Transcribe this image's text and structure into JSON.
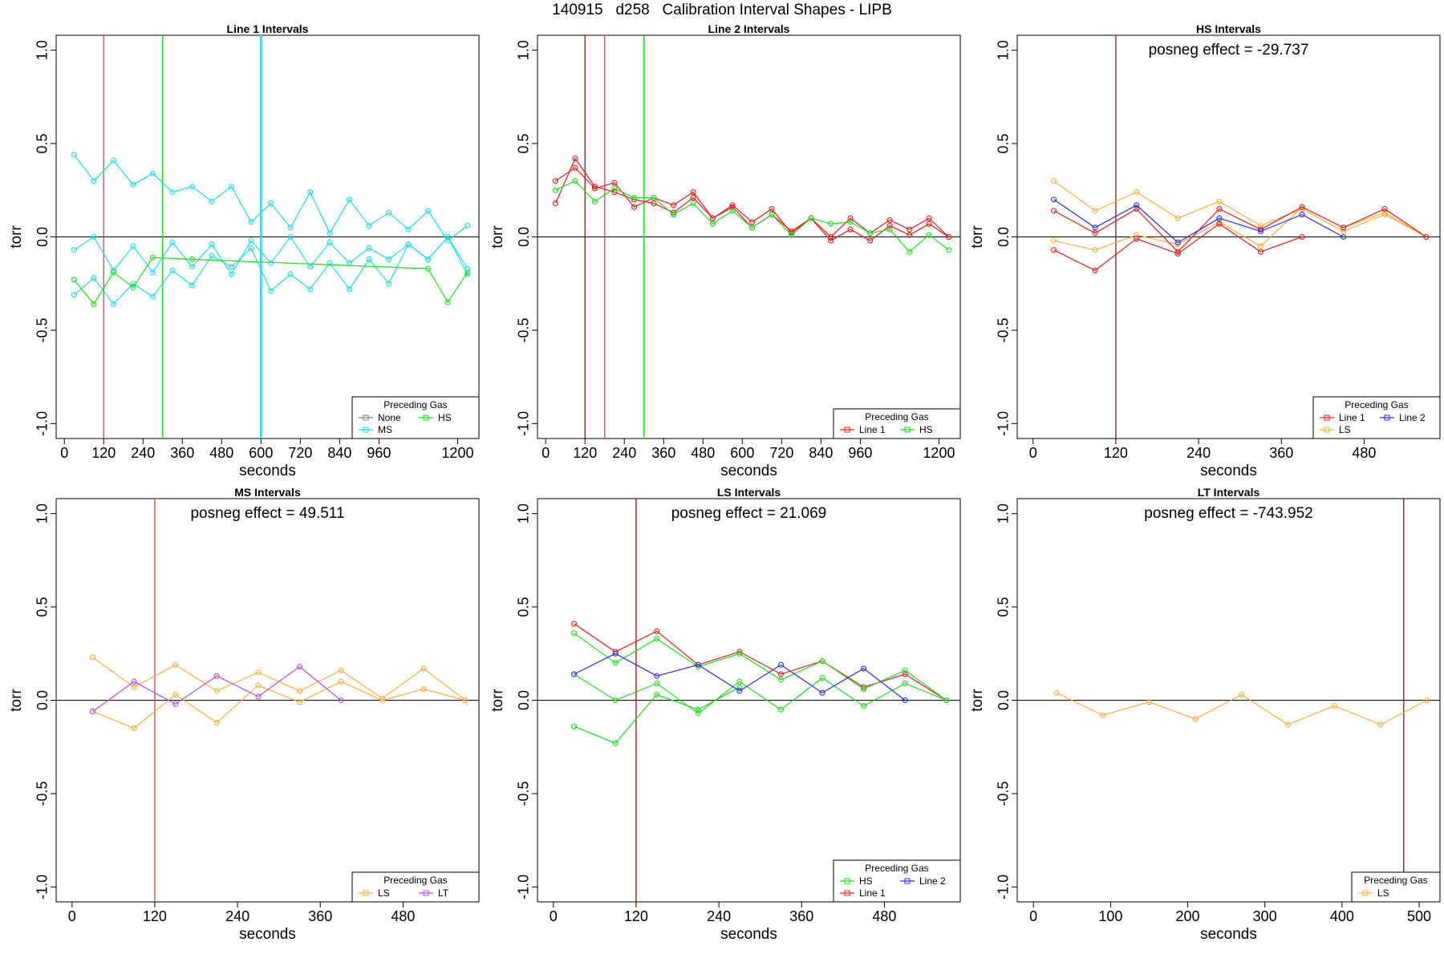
{
  "figure": {
    "title": "140915   d258   Calibration Interval Shapes - LIPB"
  },
  "colors": {
    "None": "#808080",
    "HS": "#22dd22",
    "MS": "#22dde0",
    "LS": "#f5b041",
    "LT": "#b24fe0",
    "Line 1": "#e61e1e",
    "Line 2": "#2e2ee6",
    "vline_dark": "#8b0000",
    "vline_red": "#d04040"
  },
  "chart_data": [
    {
      "type": "line",
      "title": "Line 1 Intervals",
      "xlabel": "seconds",
      "ylabel": "torr",
      "xlim": [
        -25,
        1265
      ],
      "ylim": [
        -1.08,
        1.08
      ],
      "xticks": [
        0,
        120,
        240,
        360,
        480,
        600,
        720,
        840,
        960,
        1200
      ],
      "yticks": [
        1.0,
        0.5,
        0.0,
        -0.5,
        -1.0
      ],
      "ytick_labels": [
        "1.0",
        "0.5",
        "0.0",
        "-0.5",
        "-1.0"
      ],
      "hline": 0,
      "vlines": [
        {
          "x": 120,
          "color": "#c04040",
          "width": 1.2
        },
        {
          "x": 300,
          "color": "#22dd22",
          "width": 1.5
        },
        {
          "x": 600,
          "color": "#22dde0",
          "width": 2.5
        }
      ],
      "series": [
        {
          "name": "MS",
          "color": "#22dde0",
          "x": [
            30,
            90,
            150,
            210,
            270,
            330,
            390,
            450,
            510,
            570,
            630,
            690,
            750,
            810,
            870,
            930,
            990,
            1050,
            1110,
            1170,
            1230
          ],
          "y": [
            0.44,
            0.3,
            0.41,
            0.28,
            0.34,
            0.24,
            0.27,
            0.19,
            0.27,
            0.08,
            0.18,
            0.05,
            0.24,
            0.02,
            0.2,
            0.06,
            0.13,
            0.04,
            0.14,
            -0.02,
            0.06
          ]
        },
        {
          "name": "MS",
          "color": "#22dde0",
          "x": [
            30,
            90,
            150,
            210,
            270,
            330,
            390,
            450,
            510,
            570,
            630,
            690,
            750,
            810,
            870,
            930,
            990,
            1050,
            1110,
            1170,
            1230
          ],
          "y": [
            -0.07,
            0.0,
            -0.18,
            -0.05,
            -0.19,
            -0.03,
            -0.16,
            -0.04,
            -0.2,
            -0.02,
            -0.14,
            0.0,
            -0.16,
            -0.03,
            -0.14,
            -0.06,
            -0.12,
            -0.04,
            -0.12,
            0.0,
            -0.2
          ]
        },
        {
          "name": "MS",
          "color": "#22dde0",
          "x": [
            30,
            90,
            150,
            210,
            270,
            330,
            390,
            450,
            510,
            570,
            630,
            690,
            750,
            810,
            870,
            930,
            990,
            1050,
            1110,
            1170,
            1230
          ],
          "y": [
            -0.31,
            -0.22,
            -0.36,
            -0.25,
            -0.32,
            -0.18,
            -0.26,
            -0.1,
            -0.16,
            -0.06,
            -0.29,
            -0.2,
            -0.28,
            -0.14,
            -0.28,
            -0.12,
            -0.25,
            -0.04,
            -0.12,
            0.0,
            -0.17
          ]
        },
        {
          "name": "HS",
          "color": "#22dd22",
          "x": [
            30,
            90,
            150,
            210,
            270,
            390,
            1110,
            1170,
            1230
          ],
          "y": [
            -0.23,
            -0.36,
            -0.19,
            -0.27,
            -0.11,
            -0.12,
            -0.17,
            -0.35,
            -0.19
          ]
        }
      ],
      "legend": {
        "title": "Preceding Gas",
        "position": "bottom-right",
        "rows": [
          [
            {
              "label": "None",
              "color": "#808080"
            },
            {
              "label": "HS",
              "color": "#22dd22"
            }
          ],
          [
            {
              "label": "MS",
              "color": "#22dde0"
            }
          ]
        ]
      }
    },
    {
      "type": "line",
      "title": "Line 2 Intervals",
      "xlabel": "seconds",
      "ylabel": "torr",
      "xlim": [
        -25,
        1265
      ],
      "ylim": [
        -1.08,
        1.08
      ],
      "xticks": [
        0,
        120,
        240,
        360,
        480,
        600,
        720,
        840,
        960,
        1200
      ],
      "yticks": [
        1.0,
        0.5,
        0.0,
        -0.5,
        -1.0
      ],
      "ytick_labels": [
        "1.0",
        "0.5",
        "0.0",
        "-0.5",
        "-1.0"
      ],
      "hline": 0,
      "vlines": [
        {
          "x": 120,
          "color": "#8b0000",
          "width": 1.2
        },
        {
          "x": 180,
          "color": "#d04040",
          "width": 1.2
        },
        {
          "x": 300,
          "color": "#22dd22",
          "width": 1.5
        }
      ],
      "series": [
        {
          "name": "Line 1",
          "color": "#e61e1e",
          "x": [
            30,
            90,
            150,
            210,
            270,
            330,
            390,
            450,
            510,
            570,
            630,
            690,
            750,
            810,
            870,
            930,
            990,
            1050,
            1110,
            1170,
            1230
          ],
          "y": [
            0.3,
            0.37,
            0.26,
            0.29,
            0.16,
            0.21,
            0.17,
            0.24,
            0.1,
            0.17,
            0.08,
            0.15,
            0.02,
            0.1,
            0.0,
            0.1,
            0.02,
            0.09,
            0.04,
            0.1,
            0.0
          ]
        },
        {
          "name": "Line 1",
          "color": "#e61e1e",
          "x": [
            30,
            90,
            150,
            210,
            270,
            330,
            390,
            450,
            510,
            570,
            630,
            690,
            750,
            810,
            870,
            930,
            990,
            1050,
            1110,
            1170,
            1230
          ],
          "y": [
            0.18,
            0.42,
            0.27,
            0.24,
            0.2,
            0.18,
            0.13,
            0.21,
            0.1,
            0.16,
            0.05,
            0.12,
            0.03,
            0.1,
            -0.02,
            0.04,
            -0.02,
            0.06,
            0.01,
            0.07,
            0.0
          ]
        },
        {
          "name": "HS",
          "color": "#22dd22",
          "x": [
            30,
            90,
            150,
            210,
            270,
            330,
            390,
            450,
            510,
            570,
            630,
            690,
            750,
            810,
            870,
            930,
            990,
            1050,
            1110,
            1170,
            1230
          ],
          "y": [
            0.25,
            0.3,
            0.19,
            0.26,
            0.21,
            0.21,
            0.12,
            0.18,
            0.07,
            0.14,
            0.05,
            0.12,
            0.01,
            0.1,
            0.07,
            0.08,
            0.02,
            0.04,
            -0.08,
            0.01,
            -0.07
          ]
        }
      ],
      "legend": {
        "title": "Preceding Gas",
        "position": "bottom-right",
        "rows": [
          [
            {
              "label": "Line 1",
              "color": "#e61e1e"
            },
            {
              "label": "HS",
              "color": "#22dd22"
            }
          ]
        ]
      }
    },
    {
      "type": "line",
      "title": "HS Intervals",
      "xlabel": "seconds",
      "ylabel": "torr",
      "xlim": [
        -23,
        590
      ],
      "ylim": [
        -1.08,
        1.08
      ],
      "xticks": [
        0,
        120,
        240,
        360,
        480
      ],
      "yticks": [
        1.0,
        0.5,
        0.0,
        -0.5,
        -1.0
      ],
      "ytick_labels": [
        "1.0",
        "0.5",
        "0.0",
        "-0.5",
        "-1.0"
      ],
      "hline": 0,
      "vlines": [
        {
          "x": 120,
          "color": "#8b0000",
          "width": 1.2
        }
      ],
      "annotation": "posneg effect = -29.737",
      "series": [
        {
          "name": "LS",
          "color": "#f5b041",
          "x": [
            30,
            90,
            150,
            210,
            270,
            330,
            390,
            450,
            510,
            570
          ],
          "y": [
            0.3,
            0.14,
            0.24,
            0.1,
            0.19,
            0.06,
            0.15,
            0.03,
            0.12,
            0.0
          ]
        },
        {
          "name": "LS",
          "color": "#f5b041",
          "x": [
            30,
            90,
            150,
            210,
            270,
            330,
            390,
            450,
            510,
            570
          ],
          "y": [
            -0.02,
            -0.07,
            0.01,
            -0.04,
            0.08,
            -0.05,
            0.16,
            0.05,
            0.13,
            0.0
          ]
        },
        {
          "name": "Line 1",
          "color": "#e61e1e",
          "x": [
            30,
            90,
            150,
            210,
            270,
            330,
            390,
            450,
            510,
            570
          ],
          "y": [
            0.14,
            0.02,
            0.15,
            -0.08,
            0.15,
            0.04,
            0.16,
            0.05,
            0.15,
            0.0
          ]
        },
        {
          "name": "Line 1",
          "color": "#e61e1e",
          "x": [
            30,
            90,
            150,
            210,
            270,
            330,
            390
          ],
          "y": [
            -0.07,
            -0.18,
            -0.01,
            -0.09,
            0.07,
            -0.08,
            0.0
          ]
        },
        {
          "name": "Line 2",
          "color": "#2e2ee6",
          "x": [
            30,
            90,
            150,
            210,
            270,
            330,
            390,
            450
          ],
          "y": [
            0.2,
            0.05,
            0.17,
            -0.03,
            0.1,
            0.03,
            0.12,
            0.0
          ]
        }
      ],
      "legend": {
        "title": "Preceding Gas",
        "position": "bottom-right",
        "rows": [
          [
            {
              "label": "Line 1",
              "color": "#e61e1e"
            },
            {
              "label": "Line 2",
              "color": "#2e2ee6"
            }
          ],
          [
            {
              "label": "LS",
              "color": "#f5b041"
            }
          ]
        ]
      }
    },
    {
      "type": "line",
      "title": "MS Intervals",
      "xlabel": "seconds",
      "ylabel": "torr",
      "xlim": [
        -23,
        590
      ],
      "ylim": [
        -1.08,
        1.08
      ],
      "xticks": [
        0,
        120,
        240,
        360,
        480
      ],
      "yticks": [
        1.0,
        0.5,
        0.0,
        -0.5,
        -1.0
      ],
      "ytick_labels": [
        "1.0",
        "0.5",
        "0.0",
        "-0.5",
        "-1.0"
      ],
      "hline": 0,
      "vlines": [
        {
          "x": 120,
          "color": "#c04040",
          "width": 1.2
        }
      ],
      "annotation": "posneg effect = 49.511",
      "series": [
        {
          "name": "LS",
          "color": "#f5b041",
          "x": [
            30,
            90,
            150,
            210,
            270,
            330,
            390,
            450,
            510,
            570
          ],
          "y": [
            0.23,
            0.07,
            0.19,
            0.05,
            0.15,
            0.05,
            0.16,
            0.01,
            0.17,
            0.0
          ]
        },
        {
          "name": "LS",
          "color": "#f5b041",
          "x": [
            30,
            90,
            150,
            210,
            270,
            330,
            390,
            450,
            510,
            570
          ],
          "y": [
            -0.06,
            -0.15,
            0.03,
            -0.12,
            0.08,
            -0.01,
            0.1,
            0.0,
            0.06,
            0.0
          ]
        },
        {
          "name": "LT",
          "color": "#b24fe0",
          "x": [
            30,
            90,
            150,
            210,
            270,
            330,
            390
          ],
          "y": [
            -0.06,
            0.1,
            -0.02,
            0.13,
            0.02,
            0.18,
            0.0
          ]
        }
      ],
      "legend": {
        "title": "Preceding Gas",
        "position": "bottom-right",
        "rows": [
          [
            {
              "label": "LS",
              "color": "#f5b041"
            },
            {
              "label": "LT",
              "color": "#b24fe0"
            }
          ]
        ]
      }
    },
    {
      "type": "line",
      "title": "LS Intervals",
      "xlabel": "seconds",
      "ylabel": "torr",
      "xlim": [
        -23,
        590
      ],
      "ylim": [
        -1.08,
        1.08
      ],
      "xticks": [
        0,
        120,
        240,
        360,
        480
      ],
      "yticks": [
        1.0,
        0.5,
        0.0,
        -0.5,
        -1.0
      ],
      "ytick_labels": [
        "1.0",
        "0.5",
        "0.0",
        "-0.5",
        "-1.0"
      ],
      "hline": 0,
      "vlines": [
        {
          "x": 120,
          "color": "#8b0000",
          "width": 1.2
        }
      ],
      "annotation": "posneg effect = 21.069",
      "series": [
        {
          "name": "Line 1",
          "color": "#e61e1e",
          "x": [
            30,
            90,
            150,
            210,
            270,
            330,
            390,
            450,
            510,
            570
          ],
          "y": [
            0.41,
            0.26,
            0.37,
            0.19,
            0.26,
            0.14,
            0.21,
            0.07,
            0.14,
            0.0
          ]
        },
        {
          "name": "HS",
          "color": "#22dd22",
          "x": [
            30,
            90,
            150,
            210,
            270,
            330,
            390,
            450,
            510,
            570
          ],
          "y": [
            0.36,
            0.2,
            0.33,
            0.18,
            0.25,
            0.11,
            0.21,
            0.06,
            0.16,
            0.0
          ]
        },
        {
          "name": "HS",
          "color": "#22dd22",
          "x": [
            30,
            90,
            150,
            210,
            270,
            330,
            390,
            450,
            510,
            570
          ],
          "y": [
            0.14,
            0.0,
            0.09,
            -0.07,
            0.1,
            -0.05,
            0.12,
            -0.03,
            0.09,
            0.0
          ]
        },
        {
          "name": "HS",
          "color": "#22dd22",
          "x": [
            30,
            90,
            150,
            210,
            270
          ],
          "y": [
            -0.14,
            -0.23,
            0.03,
            -0.05,
            0.07
          ]
        },
        {
          "name": "Line 2",
          "color": "#2e2ee6",
          "x": [
            30,
            90,
            150,
            210,
            270,
            330,
            390,
            450,
            510
          ],
          "y": [
            0.14,
            0.25,
            0.13,
            0.19,
            0.05,
            0.19,
            0.04,
            0.17,
            0.0
          ]
        }
      ],
      "legend": {
        "title": "Preceding Gas",
        "position": "bottom-right",
        "rows": [
          [
            {
              "label": "HS",
              "color": "#22dd22"
            },
            {
              "label": "Line 2",
              "color": "#2e2ee6"
            }
          ],
          [
            {
              "label": "Line 1",
              "color": "#e61e1e"
            }
          ]
        ]
      }
    },
    {
      "type": "line",
      "title": "LT Intervals",
      "xlabel": "seconds",
      "ylabel": "torr",
      "xlim": [
        -21,
        527
      ],
      "ylim": [
        -1.08,
        1.08
      ],
      "xticks": [
        0,
        100,
        200,
        300,
        400,
        500
      ],
      "yticks": [
        1.0,
        0.5,
        0.0,
        -0.5,
        -1.0
      ],
      "ytick_labels": [
        "1.0",
        "0.5",
        "0.0",
        "-0.5",
        "-1.0"
      ],
      "hline": 0,
      "vlines": [
        {
          "x": 480,
          "color": "#8b0000",
          "width": 1.2
        }
      ],
      "annotation": "posneg effect = -743.952",
      "series": [
        {
          "name": "LS",
          "color": "#f5b041",
          "x": [
            30,
            90,
            150,
            210,
            270,
            330,
            390,
            450,
            510
          ],
          "y": [
            0.04,
            -0.08,
            -0.01,
            -0.1,
            0.03,
            -0.13,
            -0.03,
            -0.13,
            0.0
          ]
        }
      ],
      "legend": {
        "title": "Preceding Gas",
        "position": "bottom-right",
        "rows": [
          [
            {
              "label": "LS",
              "color": "#f5b041"
            }
          ]
        ]
      }
    }
  ]
}
